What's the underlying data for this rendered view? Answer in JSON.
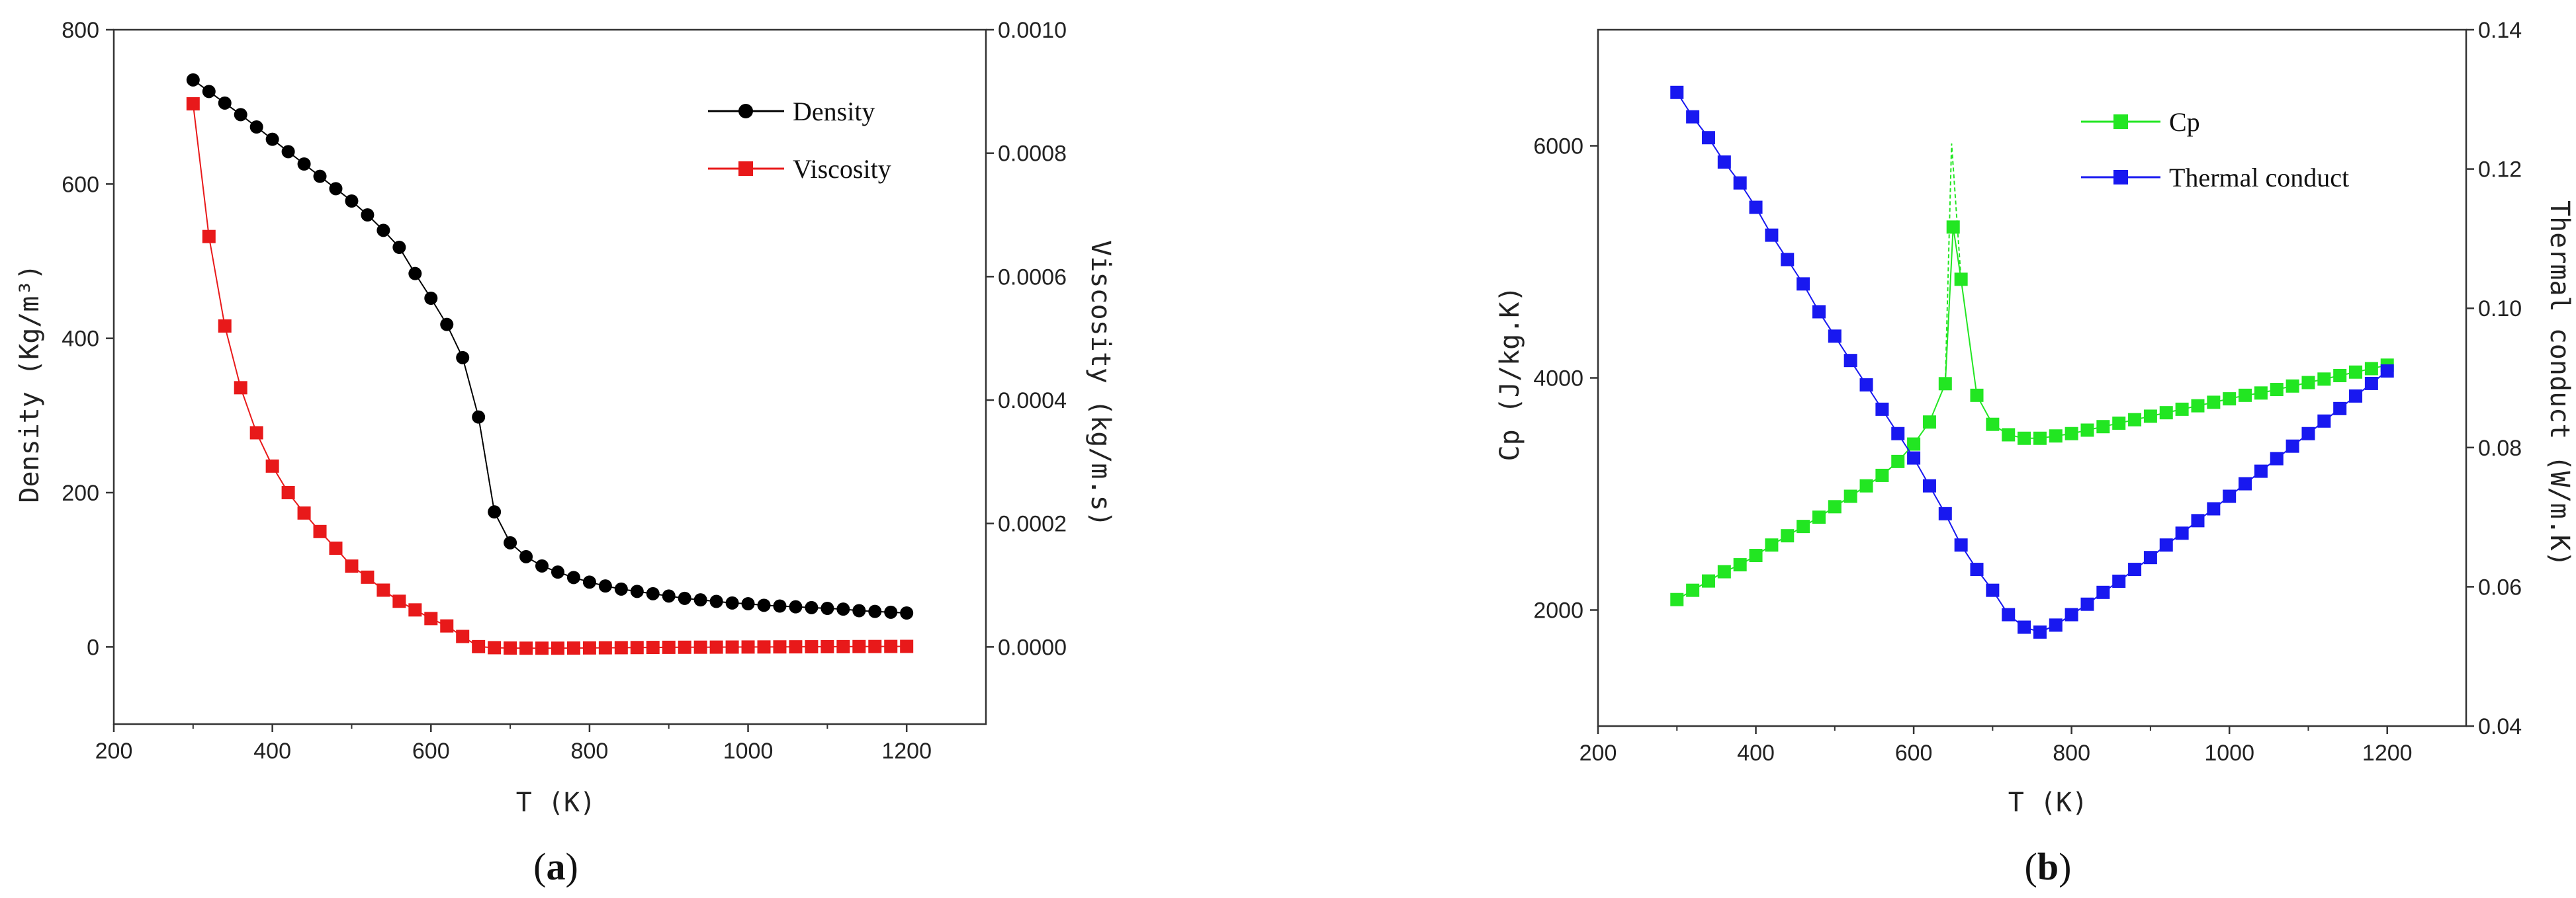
{
  "chart_data": [
    {
      "id": "a",
      "type": "line",
      "panel_label": {
        "open": "(",
        "letter": "a",
        "close": ")"
      },
      "xlabel": "T (K)",
      "ylabel_left": "Density (Kg/m³)",
      "ylabel_right": "Viscosity (kg/m.s)",
      "xlim": [
        200,
        1300
      ],
      "ylim_left": [
        -100,
        800
      ],
      "ylim_right": [
        -0.000125,
        0.001
      ],
      "x_ticks": [
        200,
        400,
        600,
        800,
        1000,
        1200
      ],
      "y_ticks_left": [
        0,
        200,
        400,
        600,
        800
      ],
      "y_ticks_right": [
        "0.0000",
        "0.0002",
        "0.0004",
        "0.0006",
        "0.0008",
        "0.0010"
      ],
      "legend_position": "top-right",
      "series": [
        {
          "name": "Density",
          "axis": "left",
          "color": "#000000",
          "marker": "circle",
          "x": [
            300,
            320,
            340,
            360,
            380,
            400,
            420,
            440,
            460,
            480,
            500,
            520,
            540,
            560,
            580,
            600,
            620,
            640,
            660,
            680,
            700,
            720,
            740,
            760,
            780,
            800,
            820,
            840,
            860,
            880,
            900,
            920,
            940,
            960,
            980,
            1000,
            1020,
            1040,
            1060,
            1080,
            1100,
            1120,
            1140,
            1160,
            1180,
            1200
          ],
          "values": [
            735,
            720,
            705,
            690,
            674,
            658,
            642,
            626,
            610,
            594,
            578,
            560,
            540,
            518,
            484,
            452,
            418,
            375,
            298,
            175,
            135,
            117,
            105,
            97,
            90,
            84,
            79,
            75,
            72,
            69,
            66,
            63,
            61,
            59,
            57,
            56,
            54,
            53,
            52,
            51,
            50,
            49,
            47,
            46,
            45,
            44
          ]
        },
        {
          "name": "Viscosity",
          "axis": "right",
          "color": "#e8191a",
          "marker": "square",
          "x": [
            300,
            320,
            340,
            360,
            380,
            400,
            420,
            440,
            460,
            480,
            500,
            520,
            540,
            560,
            580,
            600,
            620,
            640,
            660,
            680,
            700,
            720,
            740,
            760,
            780,
            800,
            820,
            840,
            860,
            880,
            900,
            920,
            940,
            960,
            980,
            1000,
            1020,
            1040,
            1060,
            1080,
            1100,
            1120,
            1140,
            1160,
            1180,
            1200
          ],
          "values": [
            0.00088,
            0.000665,
            0.00052,
            0.00042,
            0.000347,
            0.000293,
            0.00025,
            0.000217,
            0.000187,
            0.00016,
            0.000131,
            0.000113,
            9.2e-05,
            7.4e-05,
            6e-05,
            4.6e-05,
            3.4e-05,
            1.7e-05,
            5e-07,
            -1.2e-06,
            -1.8e-06,
            -2e-06,
            -2e-06,
            -2e-06,
            -1.8e-06,
            -1.6e-06,
            -1.4e-06,
            -1.2e-06,
            -1e-06,
            -8e-07,
            -6e-07,
            -5e-07,
            -4e-07,
            -3e-07,
            -2e-07,
            -1e-07,
            0,
            1e-07,
            2e-07,
            3e-07,
            4e-07,
            5e-07,
            6e-07,
            7e-07,
            8e-07,
            9e-07
          ]
        }
      ]
    },
    {
      "id": "b",
      "type": "line",
      "panel_label": {
        "open": "(",
        "letter": "b",
        "close": ")"
      },
      "xlabel": "T (K)",
      "ylabel_left": "Cp (J/kg.K)",
      "ylabel_right": "Thermal conduct (W/m.K)",
      "xlim": [
        200,
        1300
      ],
      "ylim_left": [
        1000,
        7000
      ],
      "ylim_right": [
        0.04,
        0.14
      ],
      "x_ticks": [
        200,
        400,
        600,
        800,
        1000,
        1200
      ],
      "y_ticks_left": [
        2000,
        4000,
        6000
      ],
      "y_ticks_right": [
        "0.04",
        "0.06",
        "0.08",
        "0.10",
        "0.12",
        "0.14"
      ],
      "legend_position": "top-right",
      "series": [
        {
          "name": "Cp",
          "axis": "left",
          "color": "#22e622",
          "marker": "square",
          "x": [
            300,
            320,
            340,
            360,
            380,
            400,
            420,
            440,
            460,
            480,
            500,
            520,
            540,
            560,
            580,
            600,
            620,
            640,
            650,
            660,
            680,
            700,
            720,
            740,
            760,
            780,
            800,
            820,
            840,
            860,
            880,
            900,
            920,
            940,
            960,
            980,
            1000,
            1020,
            1040,
            1060,
            1080,
            1100,
            1120,
            1140,
            1160,
            1180,
            1200
          ],
          "values": [
            2090,
            2170,
            2250,
            2330,
            2390,
            2470,
            2560,
            2640,
            2720,
            2800,
            2890,
            2980,
            3070,
            3160,
            3280,
            3430,
            3620,
            3950,
            5300,
            4850,
            3850,
            3600,
            3510,
            3480,
            3480,
            3500,
            3520,
            3550,
            3580,
            3610,
            3640,
            3670,
            3700,
            3730,
            3760,
            3790,
            3820,
            3850,
            3870,
            3900,
            3930,
            3960,
            3990,
            4020,
            4050,
            4080,
            4110
          ]
        },
        {
          "name": "Thermal conduct",
          "axis": "right",
          "color": "#1818f0",
          "marker": "square",
          "x": [
            300,
            320,
            340,
            360,
            380,
            400,
            420,
            440,
            460,
            480,
            500,
            520,
            540,
            560,
            580,
            600,
            620,
            640,
            660,
            680,
            700,
            720,
            740,
            760,
            780,
            800,
            820,
            840,
            860,
            880,
            900,
            920,
            940,
            960,
            980,
            1000,
            1020,
            1040,
            1060,
            1080,
            1100,
            1120,
            1140,
            1160,
            1180,
            1200
          ],
          "values": [
            0.131,
            0.1275,
            0.1245,
            0.121,
            0.118,
            0.1145,
            0.1105,
            0.107,
            0.1035,
            0.0995,
            0.096,
            0.0925,
            0.089,
            0.0855,
            0.082,
            0.0785,
            0.0745,
            0.0705,
            0.066,
            0.0625,
            0.0595,
            0.056,
            0.0542,
            0.0535,
            0.0545,
            0.056,
            0.0575,
            0.0592,
            0.0608,
            0.0625,
            0.0642,
            0.066,
            0.0677,
            0.0695,
            0.0712,
            0.073,
            0.0748,
            0.0766,
            0.0784,
            0.0802,
            0.082,
            0.0838,
            0.0856,
            0.0874,
            0.0892,
            0.091
          ]
        }
      ]
    }
  ]
}
